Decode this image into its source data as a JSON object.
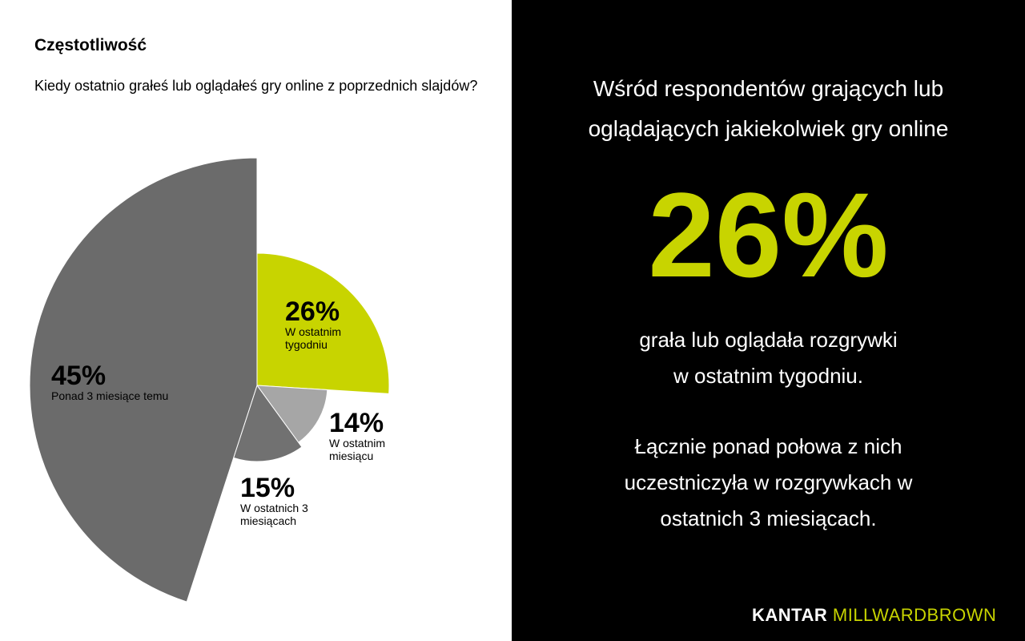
{
  "left": {
    "title": "Częstotliwość",
    "question": "Kiedy ostatnio grałeś lub oglądałeś gry online z poprzednich slajdów?"
  },
  "chart_data": {
    "type": "pie",
    "variant": "variable-radius",
    "slices": [
      {
        "label": "W ostatnim tygodniu",
        "value": 26,
        "display": "26%",
        "color": "#c8d400"
      },
      {
        "label": "W ostatnim miesiącu",
        "value": 14,
        "display": "14%",
        "color": "#a6a6a6"
      },
      {
        "label": "W ostatnich 3 miesiącach",
        "value": 15,
        "display": "15%",
        "color": "#717171"
      },
      {
        "label": "Ponad 3 miesiące temu",
        "value": 45,
        "display": "45%",
        "color": "#6b6b6b"
      }
    ]
  },
  "right": {
    "headline": "Wśród respondentów grających lub oglądających jakiekolwiek gry online",
    "big_value": "26%",
    "para1": "grała lub oglądała rozgrywki w ostatnim tygodniu.",
    "para2": "Łącznie ponad połowa z nich uczestniczyła w rozgrywkach w ostatnich 3 miesiącach.",
    "logo_kantar": "KANTAR",
    "logo_mb": "MILLWARDBROWN",
    "accent": "#c8d400"
  }
}
